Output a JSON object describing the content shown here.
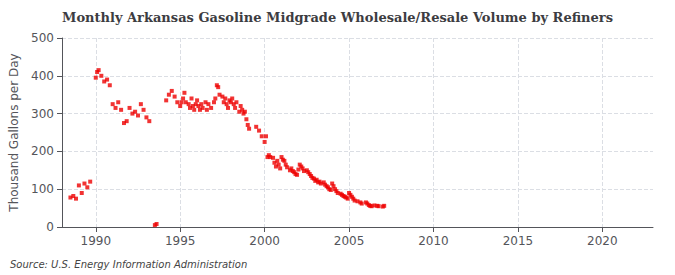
{
  "chart_data": {
    "type": "scatter",
    "title": "Monthly Arkansas Gasoline Midgrade Wholesale/Resale Volume by Refiners",
    "ylabel": "Thousand Gallons per Day",
    "annotation": "Source: U.S. Energy Information Administration",
    "color": "#EE0000",
    "marker": "square",
    "grid": true,
    "xlim": [
      1988.0,
      2023.0
    ],
    "ylim": [
      0,
      500
    ],
    "xticks": [
      1990,
      1995,
      2000,
      2005,
      2010,
      2015,
      2020
    ],
    "yticks": [
      0,
      100,
      200,
      300,
      400,
      500
    ],
    "x": [
      1988.5,
      1988.67,
      1988.83,
      1989.0,
      1989.17,
      1989.33,
      1989.5,
      1989.67,
      1990.0,
      1990.08,
      1990.17,
      1990.33,
      1990.5,
      1990.67,
      1990.83,
      1991.0,
      1991.17,
      1991.33,
      1991.5,
      1991.67,
      1991.83,
      1992.0,
      1992.17,
      1992.33,
      1992.5,
      1992.67,
      1992.83,
      1993.0,
      1993.17,
      1993.5,
      1993.6,
      1994.17,
      1994.33,
      1994.5,
      1994.67,
      1994.83,
      1995.0,
      1995.08,
      1995.17,
      1995.25,
      1995.33,
      1995.5,
      1995.58,
      1995.67,
      1995.75,
      1995.83,
      1995.92,
      1996.0,
      1996.08,
      1996.17,
      1996.25,
      1996.33,
      1996.5,
      1996.58,
      1996.67,
      1996.83,
      1997.0,
      1997.08,
      1997.17,
      1997.25,
      1997.33,
      1997.5,
      1997.58,
      1997.67,
      1997.75,
      1997.83,
      1997.92,
      1998.0,
      1998.08,
      1998.17,
      1998.25,
      1998.33,
      1998.5,
      1998.58,
      1998.67,
      1998.75,
      1998.83,
      1998.92,
      1999.0,
      1999.08,
      1999.5,
      1999.67,
      1999.83,
      2000.0,
      2000.08,
      2000.17,
      2000.25,
      2000.33,
      2000.5,
      2000.58,
      2000.67,
      2000.75,
      2000.83,
      2000.92,
      2001.0,
      2001.08,
      2001.17,
      2001.25,
      2001.33,
      2001.5,
      2001.58,
      2001.67,
      2001.75,
      2001.83,
      2001.92,
      2002.0,
      2002.08,
      2002.17,
      2002.25,
      2002.33,
      2002.5,
      2002.58,
      2002.67,
      2002.75,
      2002.83,
      2002.92,
      2003.0,
      2003.08,
      2003.17,
      2003.25,
      2003.33,
      2003.5,
      2003.58,
      2003.67,
      2003.75,
      2003.83,
      2003.92,
      2004.0,
      2004.08,
      2004.17,
      2004.25,
      2004.33,
      2004.5,
      2004.58,
      2004.67,
      2004.75,
      2004.83,
      2004.92,
      2005.0,
      2005.08,
      2005.17,
      2005.25,
      2005.33,
      2005.5,
      2005.67,
      2005.75,
      2006.0,
      2006.08,
      2006.17,
      2006.25,
      2006.33,
      2006.5,
      2006.67,
      2006.75,
      2007.0,
      2007.08
    ],
    "values": [
      78,
      82,
      75,
      110,
      90,
      115,
      105,
      120,
      395,
      410,
      415,
      400,
      385,
      390,
      375,
      325,
      315,
      330,
      310,
      275,
      280,
      315,
      300,
      305,
      295,
      325,
      310,
      290,
      280,
      5,
      8,
      335,
      350,
      360,
      345,
      330,
      320,
      330,
      340,
      355,
      330,
      325,
      315,
      340,
      320,
      310,
      325,
      335,
      320,
      310,
      325,
      315,
      330,
      310,
      325,
      315,
      330,
      340,
      375,
      370,
      350,
      345,
      330,
      340,
      325,
      315,
      335,
      330,
      340,
      325,
      315,
      330,
      305,
      320,
      310,
      300,
      305,
      285,
      270,
      260,
      265,
      255,
      240,
      225,
      240,
      185,
      190,
      185,
      183,
      170,
      160,
      175,
      165,
      155,
      185,
      178,
      175,
      165,
      158,
      150,
      155,
      148,
      145,
      140,
      138,
      152,
      165,
      160,
      155,
      148,
      150,
      145,
      140,
      135,
      130,
      128,
      122,
      125,
      118,
      120,
      115,
      118,
      112,
      108,
      105,
      100,
      98,
      115,
      108,
      100,
      95,
      90,
      88,
      85,
      82,
      80,
      78,
      75,
      90,
      85,
      80,
      75,
      70,
      68,
      65,
      62,
      65,
      62,
      58,
      56,
      55,
      57,
      56,
      55,
      54,
      56
    ]
  }
}
